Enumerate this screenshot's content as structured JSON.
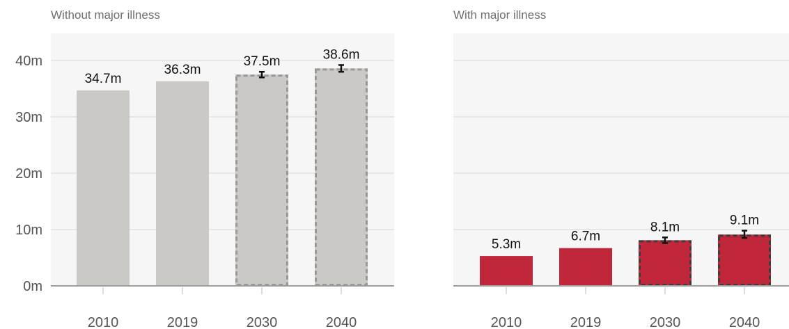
{
  "chart_data": [
    {
      "type": "bar",
      "title": "Without major illness",
      "categories": [
        "2010",
        "2019",
        "2030",
        "2040"
      ],
      "values": [
        34.7,
        36.3,
        37.5,
        38.6
      ],
      "labels": [
        "34.7m",
        "36.3m",
        "37.5m",
        "38.6m"
      ],
      "projected": [
        false,
        false,
        true,
        true
      ],
      "error": [
        null,
        null,
        [
          37.0,
          38.0
        ],
        [
          38.0,
          39.2
        ]
      ],
      "yticks": [
        "0m",
        "10m",
        "20m",
        "30m",
        "40m"
      ],
      "ylim": [
        0,
        45
      ],
      "bar_color": "#cbc9c6",
      "grid": true
    },
    {
      "type": "bar",
      "title": "With major illness",
      "categories": [
        "2010",
        "2019",
        "2030",
        "2040"
      ],
      "values": [
        5.3,
        6.7,
        8.1,
        9.1
      ],
      "labels": [
        "5.3m",
        "6.7m",
        "8.1m",
        "9.1m"
      ],
      "projected": [
        false,
        false,
        true,
        true
      ],
      "error": [
        null,
        null,
        [
          7.6,
          8.6
        ],
        [
          8.5,
          9.8
        ]
      ],
      "ylim": [
        0,
        45
      ],
      "bar_color": "#c1273a",
      "grid": true
    }
  ]
}
